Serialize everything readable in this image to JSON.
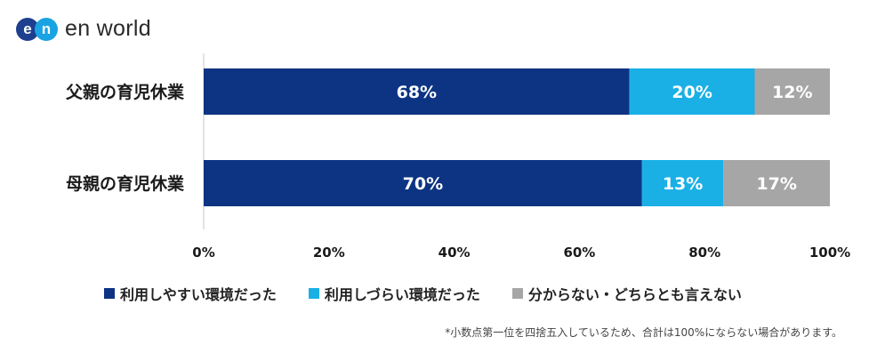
{
  "logo": {
    "text": "en world",
    "mark_letters": [
      "e",
      "n"
    ]
  },
  "colors": {
    "easy": "#0d3483",
    "hard": "#1ab0e6",
    "unknown": "#a6a6a6",
    "mark_dark": "#1d3f8f",
    "mark_light": "#1aa3e3"
  },
  "chart_data": {
    "type": "bar",
    "orientation": "horizontal",
    "stacked": true,
    "categories": [
      "父親の育児休業",
      "母親の育児休業"
    ],
    "series": [
      {
        "name": "利用しやすい環境だった",
        "values": [
          68,
          70
        ],
        "labels": [
          "68%",
          "70%"
        ],
        "color": "#0d3483"
      },
      {
        "name": "利用しづらい環境だった",
        "values": [
          20,
          13
        ],
        "labels": [
          "20%",
          "13%"
        ],
        "color": "#1ab0e6"
      },
      {
        "name": "分からない・どちらとも言えない",
        "values": [
          12,
          17
        ],
        "labels": [
          "12%",
          "17%"
        ],
        "color": "#a6a6a6"
      }
    ],
    "xlim": [
      0,
      100
    ],
    "xticks": [
      0,
      20,
      40,
      60,
      80,
      100
    ],
    "xtick_labels": [
      "0%",
      "20%",
      "40%",
      "60%",
      "80%",
      "100%"
    ],
    "legend_position": "bottom",
    "grid": false
  },
  "footnote": "*小数点第一位を四捨五入しているため、合計は100%にならない場合があります。"
}
